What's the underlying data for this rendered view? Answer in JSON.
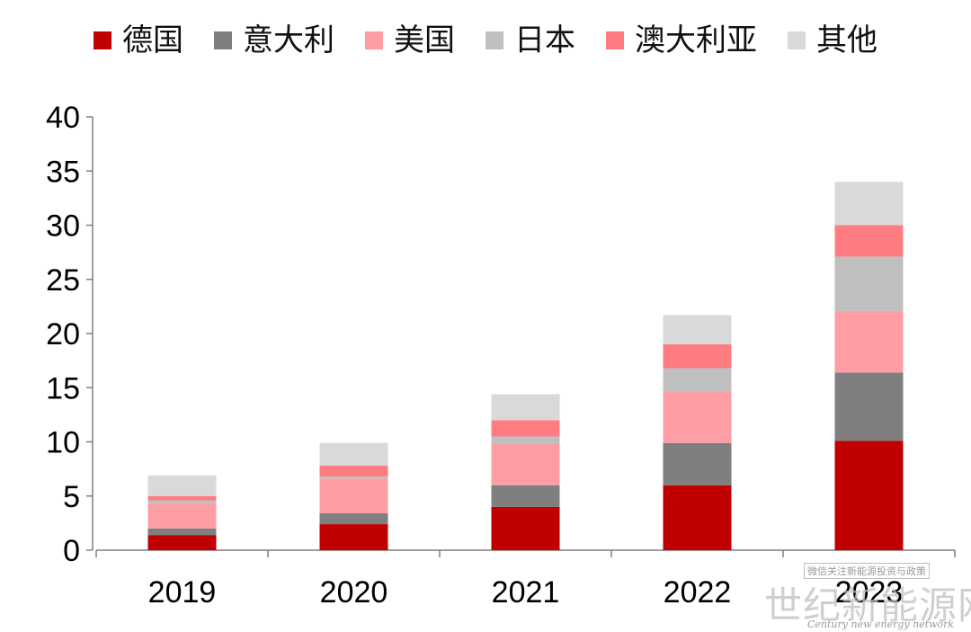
{
  "chart_data": {
    "type": "bar",
    "stacked": true,
    "categories": [
      "2019",
      "2020",
      "2021",
      "2022",
      "2023"
    ],
    "series": [
      {
        "name": "德国",
        "color": "#c00000",
        "values": [
          1.4,
          2.4,
          4.0,
          6.0,
          10.1
        ]
      },
      {
        "name": "意大利",
        "color": "#7f7f7f",
        "values": [
          0.6,
          1.0,
          2.0,
          3.9,
          6.3
        ]
      },
      {
        "name": "美国",
        "color": "#ff9da5",
        "values": [
          2.3,
          3.2,
          3.8,
          4.8,
          5.7
        ]
      },
      {
        "name": "日本",
        "color": "#bfbfbf",
        "values": [
          0.3,
          0.2,
          0.7,
          2.1,
          5.0
        ]
      },
      {
        "name": "澳大利亚",
        "color": "#ff7c80",
        "values": [
          0.4,
          1.0,
          1.5,
          2.2,
          2.9
        ]
      },
      {
        "name": "其他",
        "color": "#d9d9d9",
        "values": [
          1.9,
          2.1,
          2.4,
          2.7,
          4.0
        ]
      }
    ],
    "ylim": [
      0,
      40
    ],
    "yticks": [
      0,
      5,
      10,
      15,
      20,
      25,
      30,
      35,
      40
    ],
    "legend_position": "top",
    "grid": false,
    "title": "",
    "xlabel": "",
    "ylabel": ""
  },
  "watermark": {
    "caption": "微信关注新能源投资与政策",
    "main": "世纪新能源网",
    "sub": "Century new energy network"
  }
}
